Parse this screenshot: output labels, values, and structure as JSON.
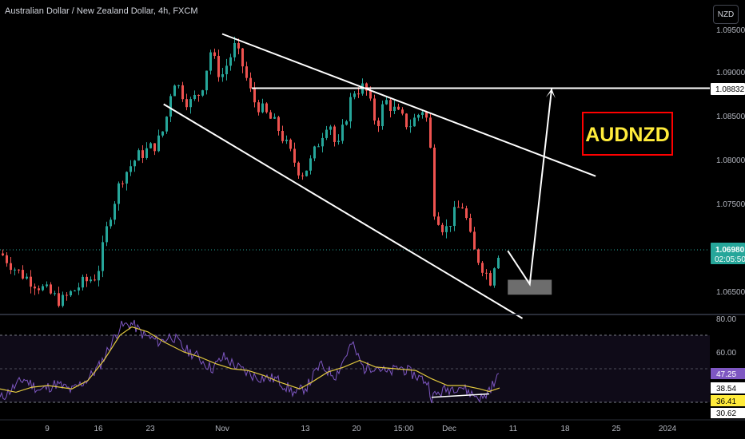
{
  "header": {
    "title": "Australian Dollar / New Zealand Dollar, 4h, FXCM",
    "currency": "NZD"
  },
  "annotation": {
    "label": "AUDNZD",
    "color": "#ffeb3b",
    "border": "#ff0000"
  },
  "price_scale": {
    "ticks": [
      "1.09500",
      "1.09000",
      "1.08500",
      "1.08000",
      "1.07500",
      "1.06500"
    ],
    "level_label": "1.08832",
    "last_price": "1.06980",
    "countdown": "02:05:50"
  },
  "rsi_scale": {
    "ticks": [
      "80.00",
      "60.00"
    ],
    "rsi_value": "47.25",
    "ma_value": "38.54",
    "value_3": "36.41",
    "value_4": "30.62"
  },
  "time_axis": {
    "labels": [
      "9",
      "16",
      "23",
      "Nov",
      "13",
      "20",
      "15:00",
      "Dec",
      "11",
      "18",
      "25",
      "2024"
    ]
  },
  "colors": {
    "up": "#26a69a",
    "down": "#ef5350",
    "rsi_line": "#7e57c2",
    "rsi_ma": "#e2c93f",
    "lines": "#ffffff",
    "box": "#808080"
  },
  "chart_data": [
    {
      "type": "candlestick",
      "title": "Australian Dollar / New Zealand Dollar, 4h, FXCM",
      "ylim": [
        1.063,
        1.0975
      ],
      "yticks": [
        1.095,
        1.09,
        1.085,
        1.08,
        1.075,
        1.065
      ],
      "price_path": [
        [
          0,
          1.0695
        ],
        [
          20,
          1.0675
        ],
        [
          60,
          1.065
        ],
        [
          75,
          1.064
        ],
        [
          100,
          1.066
        ],
        [
          120,
          1.067
        ],
        [
          135,
          1.0735
        ],
        [
          150,
          1.078
        ],
        [
          170,
          1.0805
        ],
        [
          195,
          1.082
        ],
        [
          205,
          1.084
        ],
        [
          215,
          1.0895
        ],
        [
          235,
          1.0865
        ],
        [
          250,
          1.088
        ],
        [
          262,
          1.0925
        ],
        [
          275,
          1.0895
        ],
        [
          292,
          1.093
        ],
        [
          300,
          1.0915
        ],
        [
          315,
          1.087
        ],
        [
          345,
          1.084
        ],
        [
          375,
          1.0785
        ],
        [
          385,
          1.0795
        ],
        [
          410,
          1.085
        ],
        [
          420,
          1.081
        ],
        [
          440,
          1.088
        ],
        [
          455,
          1.0885
        ],
        [
          470,
          1.084
        ],
        [
          480,
          1.087
        ],
        [
          500,
          1.085
        ],
        [
          510,
          1.084
        ],
        [
          528,
          1.086
        ],
        [
          535,
          1.084
        ],
        [
          542,
          1.0745
        ],
        [
          555,
          1.072
        ],
        [
          570,
          1.0745
        ],
        [
          578,
          1.075
        ],
        [
          590,
          1.07
        ],
        [
          605,
          1.0675
        ],
        [
          612,
          1.0665
        ],
        [
          620,
          1.0695
        ],
        [
          625,
          1.0698
        ]
      ],
      "trendlines": [
        {
          "name": "upper channel",
          "from": {
            "x": "2023-10-31",
            "y": 1.0945
          },
          "to": {
            "x": "2023-12-21",
            "y": 1.0783
          }
        },
        {
          "name": "lower channel",
          "from": {
            "x": "2023-10-23",
            "y": 1.0865
          },
          "to": {
            "x": "2023-12-11",
            "y": 1.0621
          }
        }
      ],
      "horizontal_levels": [
        1.08832
      ],
      "projection": [
        {
          "x": "2023-12-09",
          "y": 1.0698
        },
        {
          "x": "2023-12-12",
          "y": 1.066
        },
        {
          "x": "2023-12-15",
          "y": 1.0883
        }
      ],
      "zone": {
        "x_start": "2023-12-09",
        "x_end": "2023-12-15",
        "y_low": 1.0648,
        "y_high": 1.0665
      },
      "last_price": 1.0698
    },
    {
      "type": "line",
      "name": "RSI",
      "ylim": [
        28,
        82
      ],
      "bands": [
        30,
        70
      ],
      "rsi_path": [
        [
          0,
          32
        ],
        [
          15,
          38
        ],
        [
          30,
          44
        ],
        [
          50,
          37
        ],
        [
          70,
          41
        ],
        [
          90,
          37
        ],
        [
          110,
          44
        ],
        [
          125,
          52
        ],
        [
          140,
          66
        ],
        [
          150,
          75
        ],
        [
          165,
          77
        ],
        [
          180,
          70
        ],
        [
          200,
          66
        ],
        [
          215,
          70
        ],
        [
          230,
          62
        ],
        [
          245,
          58
        ],
        [
          265,
          50
        ],
        [
          280,
          57
        ],
        [
          300,
          50
        ],
        [
          320,
          45
        ],
        [
          345,
          44
        ],
        [
          370,
          35
        ],
        [
          385,
          40
        ],
        [
          400,
          52
        ],
        [
          420,
          46
        ],
        [
          440,
          65
        ],
        [
          455,
          50
        ],
        [
          470,
          52
        ],
        [
          485,
          47
        ],
        [
          500,
          51
        ],
        [
          520,
          46
        ],
        [
          535,
          42
        ],
        [
          540,
          33
        ],
        [
          555,
          37
        ],
        [
          575,
          40
        ],
        [
          590,
          35
        ],
        [
          605,
          32
        ],
        [
          612,
          38
        ],
        [
          620,
          42
        ],
        [
          625,
          47.25
        ]
      ],
      "ma_path": [
        [
          0,
          38
        ],
        [
          20,
          36
        ],
        [
          40,
          39
        ],
        [
          60,
          40
        ],
        [
          90,
          38
        ],
        [
          110,
          43
        ],
        [
          130,
          55
        ],
        [
          150,
          70
        ],
        [
          165,
          75
        ],
        [
          185,
          72
        ],
        [
          205,
          66
        ],
        [
          230,
          60
        ],
        [
          250,
          57
        ],
        [
          270,
          53
        ],
        [
          290,
          50
        ],
        [
          310,
          49
        ],
        [
          330,
          46
        ],
        [
          350,
          42
        ],
        [
          375,
          38
        ],
        [
          390,
          42
        ],
        [
          410,
          48
        ],
        [
          430,
          51
        ],
        [
          450,
          55
        ],
        [
          470,
          51
        ],
        [
          495,
          50
        ],
        [
          520,
          49
        ],
        [
          540,
          44
        ],
        [
          560,
          40
        ],
        [
          580,
          40
        ],
        [
          600,
          38
        ],
        [
          612,
          36.41
        ],
        [
          625,
          38.54
        ]
      ],
      "divergence_line": [
        [
          540,
          33
        ],
        [
          612,
          35
        ]
      ],
      "value": 47.25,
      "ma_value": 38.54
    }
  ]
}
